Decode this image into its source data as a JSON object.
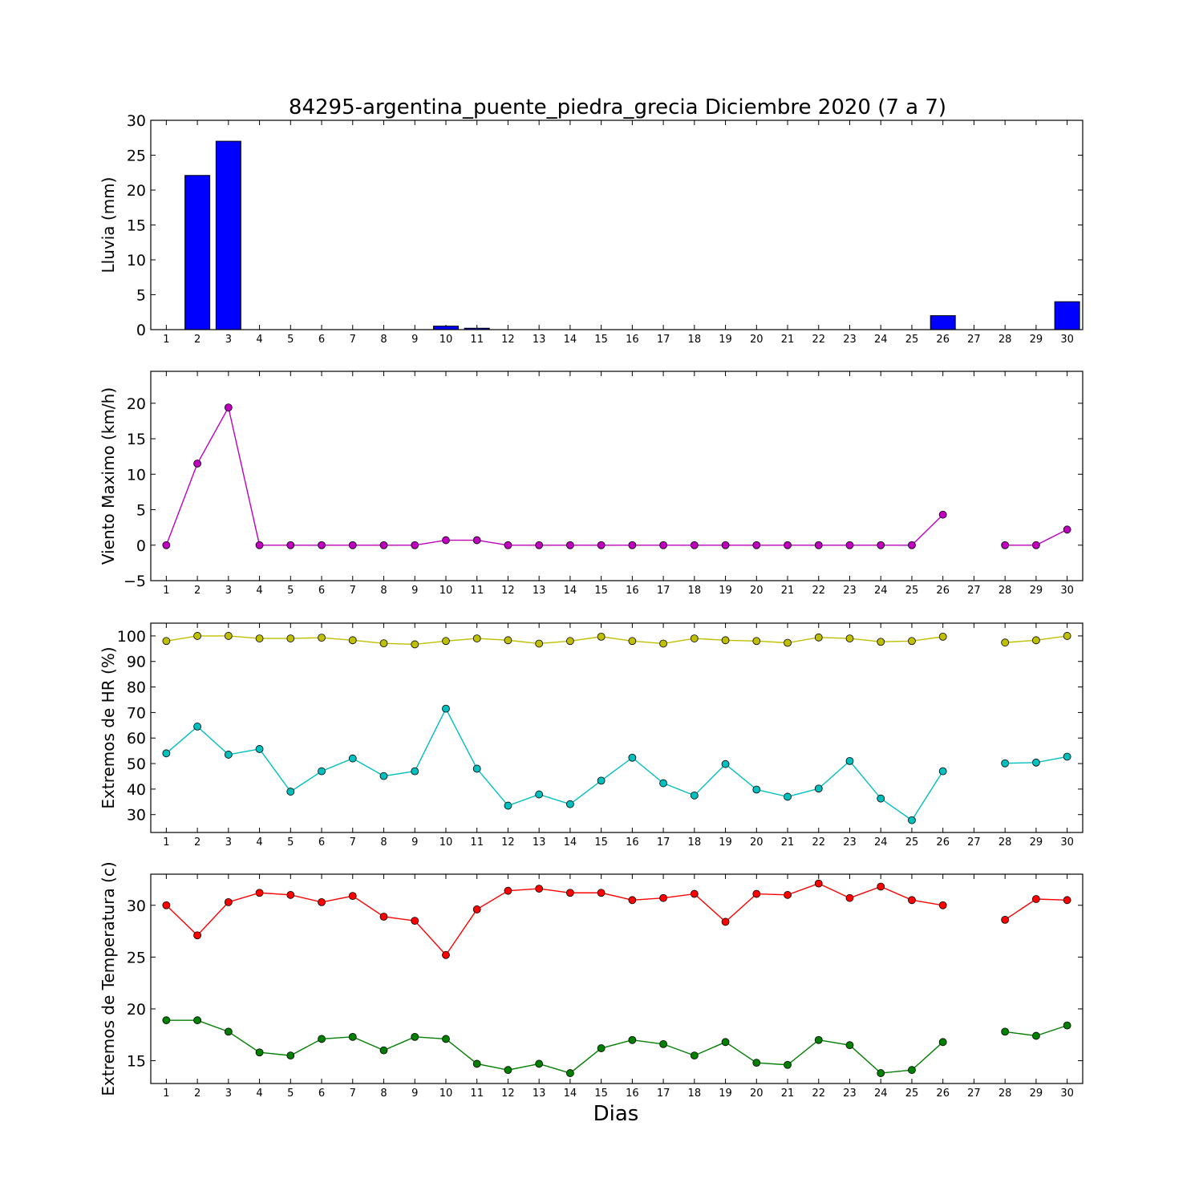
{
  "title": "84295-argentina_puente_piedra_grecia Diciembre 2020  (7 a 7)",
  "xlabel": "Dias",
  "chart_data": [
    {
      "type": "bar",
      "ylabel": "Lluvia (mm)",
      "ylim": [
        0,
        30
      ],
      "yticks": [
        0,
        5,
        10,
        15,
        20,
        25,
        30
      ],
      "categories": [
        "1",
        "2",
        "3",
        "4",
        "5",
        "6",
        "7",
        "8",
        "9",
        "10",
        "11",
        "12",
        "13",
        "14",
        "15",
        "16",
        "17",
        "18",
        "19",
        "20",
        "21",
        "22",
        "23",
        "24",
        "25",
        "26",
        "27",
        "28",
        "29",
        "30"
      ],
      "series": [
        {
          "color": "#0000ff",
          "values": [
            0,
            22.1,
            27,
            0,
            0,
            0,
            0,
            0,
            0,
            0.5,
            0.2,
            0,
            0,
            0,
            0,
            0,
            0,
            0,
            0,
            0,
            0,
            0,
            0,
            0,
            0,
            2,
            0,
            0,
            0,
            4
          ]
        }
      ]
    },
    {
      "type": "line",
      "ylabel": "Viento Maximo (km/h)",
      "ylim": [
        -5,
        24.5
      ],
      "yticks": [
        -5,
        0,
        5,
        10,
        15,
        20
      ],
      "categories": [
        "1",
        "2",
        "3",
        "4",
        "5",
        "6",
        "7",
        "8",
        "9",
        "10",
        "11",
        "12",
        "13",
        "14",
        "15",
        "16",
        "17",
        "18",
        "19",
        "20",
        "21",
        "22",
        "23",
        "24",
        "25",
        "26",
        "27",
        "28",
        "29",
        "30"
      ],
      "series": [
        {
          "color": "#bf00bf",
          "values": [
            0,
            11.5,
            19.4,
            0,
            0,
            0,
            0,
            0,
            0,
            0.7,
            0.7,
            0,
            0,
            0,
            0,
            0,
            0,
            0,
            0,
            0,
            0,
            0,
            0,
            0,
            0,
            4.3,
            null,
            0,
            0,
            2.2
          ]
        }
      ]
    },
    {
      "type": "line",
      "ylabel": "Extremos de HR (%)",
      "ylim": [
        23,
        105
      ],
      "yticks": [
        30,
        40,
        50,
        60,
        70,
        80,
        90,
        100
      ],
      "categories": [
        "1",
        "2",
        "3",
        "4",
        "5",
        "6",
        "7",
        "8",
        "9",
        "10",
        "11",
        "12",
        "13",
        "14",
        "15",
        "16",
        "17",
        "18",
        "19",
        "20",
        "21",
        "22",
        "23",
        "24",
        "25",
        "26",
        "27",
        "28",
        "29",
        "30"
      ],
      "series": [
        {
          "color": "#bfbf00",
          "values": [
            98,
            100,
            100,
            99,
            99,
            99.3,
            98.3,
            97.1,
            96.7,
            98,
            99,
            98.3,
            97,
            98,
            99.7,
            98,
            97,
            99,
            98.3,
            98,
            97.3,
            99.4,
            99,
            97.7,
            98,
            99.7,
            null,
            97.4,
            98.3,
            100
          ]
        },
        {
          "color": "#00bfbf",
          "values": [
            54,
            64.5,
            53.5,
            55.7,
            39,
            47,
            52,
            45.1,
            47,
            71.5,
            48,
            33.5,
            37.9,
            34.1,
            43.3,
            52.3,
            42.3,
            37.5,
            49.8,
            39.8,
            37,
            40.2,
            51,
            36.3,
            27.8,
            47,
            null,
            50.1,
            50.4,
            52.7
          ]
        }
      ]
    },
    {
      "type": "line",
      "ylabel": "Extremos de Temperatura (c)",
      "ylim": [
        12.8,
        33
      ],
      "yticks": [
        15,
        20,
        25,
        30
      ],
      "categories": [
        "1",
        "2",
        "3",
        "4",
        "5",
        "6",
        "7",
        "8",
        "9",
        "10",
        "11",
        "12",
        "13",
        "14",
        "15",
        "16",
        "17",
        "18",
        "19",
        "20",
        "21",
        "22",
        "23",
        "24",
        "25",
        "26",
        "27",
        "28",
        "29",
        "30"
      ],
      "series": [
        {
          "color": "#ff0000",
          "values": [
            30,
            27.1,
            30.3,
            31.2,
            31,
            30.3,
            30.9,
            28.9,
            28.5,
            25.2,
            29.6,
            31.4,
            31.6,
            31.2,
            31.2,
            30.5,
            30.7,
            31.1,
            28.4,
            31.1,
            31,
            32.1,
            30.7,
            31.8,
            30.5,
            30,
            null,
            28.6,
            30.6,
            30.5
          ]
        },
        {
          "color": "#008000",
          "values": [
            18.9,
            18.9,
            17.8,
            15.8,
            15.5,
            17.1,
            17.3,
            16,
            17.3,
            17.1,
            14.7,
            14.1,
            14.7,
            13.8,
            16.2,
            17,
            16.6,
            15.5,
            16.8,
            14.8,
            14.6,
            17,
            16.5,
            13.8,
            14.1,
            16.8,
            null,
            17.8,
            17.4,
            18.4
          ]
        }
      ]
    }
  ]
}
